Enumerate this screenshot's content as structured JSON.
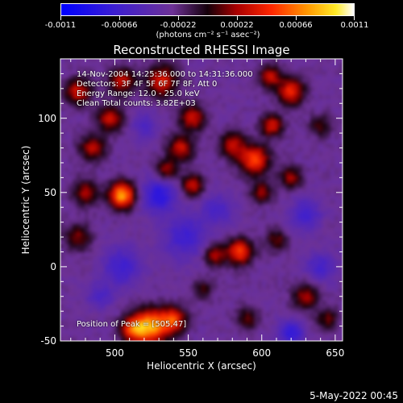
{
  "chart_data": {
    "type": "heatmap",
    "title": "Reconstructed RHESSI Image",
    "xlabel": "Heliocentric X (arcsec)",
    "ylabel": "Heliocentric Y (arcsec)",
    "xlim": [
      463,
      655
    ],
    "ylim": [
      -50,
      140
    ],
    "xticks": [
      500,
      550,
      600,
      650
    ],
    "yticks": [
      -50,
      0,
      50,
      100
    ],
    "colorbar": {
      "ticks": [
        -0.0011,
        -0.00066,
        -0.00022,
        0.00022,
        0.00066,
        0.0011
      ],
      "tick_labels": [
        "-0.0011",
        "-0.00066",
        "-0.00022",
        "0.00022",
        "0.00066",
        "0.0011"
      ],
      "units": "(photons cm⁻² s⁻¹ asec⁻²)",
      "range": [
        -0.0011,
        0.0011
      ]
    },
    "annotations": [
      "14-Nov-2004 14:25:36.000 to 14:31:36.000",
      "Detectors: 3F 4F 5F 6F 7F 8F, Att 0",
      "Energy Range: 12.0 - 25.0 keV",
      "Clean      Total counts: 3.82E+03",
      "Position of Peak = [505,47]"
    ],
    "sources": [
      {
        "x": 505,
        "y": 48,
        "amp": 0.0011,
        "sigma": 6
      },
      {
        "x": 525,
        "y": -40,
        "amp": 0.001,
        "sigma": 8
      },
      {
        "x": 513,
        "y": -42,
        "amp": 0.0008,
        "sigma": 6
      },
      {
        "x": 540,
        "y": -36,
        "amp": 0.00075,
        "sigma": 6
      },
      {
        "x": 585,
        "y": 10,
        "amp": 0.0008,
        "sigma": 6
      },
      {
        "x": 568,
        "y": 8,
        "amp": 0.00055,
        "sigma": 5
      },
      {
        "x": 595,
        "y": 72,
        "amp": 0.0008,
        "sigma": 7
      },
      {
        "x": 580,
        "y": 82,
        "amp": 0.00055,
        "sigma": 6
      },
      {
        "x": 607,
        "y": 95,
        "amp": 0.00065,
        "sigma": 5
      },
      {
        "x": 620,
        "y": 118,
        "amp": 0.00075,
        "sigma": 6
      },
      {
        "x": 606,
        "y": 128,
        "amp": 0.0006,
        "sigma": 5
      },
      {
        "x": 532,
        "y": 125,
        "amp": 0.0007,
        "sigma": 7
      },
      {
        "x": 505,
        "y": 125,
        "amp": 0.0006,
        "sigma": 6
      },
      {
        "x": 475,
        "y": 118,
        "amp": 0.00065,
        "sigma": 6
      },
      {
        "x": 497,
        "y": 100,
        "amp": 0.0006,
        "sigma": 6
      },
      {
        "x": 485,
        "y": 80,
        "amp": 0.00055,
        "sigma": 6
      },
      {
        "x": 480,
        "y": 50,
        "amp": 0.0005,
        "sigma": 6
      },
      {
        "x": 475,
        "y": 20,
        "amp": 0.00045,
        "sigma": 6
      },
      {
        "x": 553,
        "y": 100,
        "amp": 0.0006,
        "sigma": 6
      },
      {
        "x": 545,
        "y": 80,
        "amp": 0.0006,
        "sigma": 6
      },
      {
        "x": 553,
        "y": 55,
        "amp": 0.00065,
        "sigma": 5
      },
      {
        "x": 535,
        "y": 65,
        "amp": 0.0005,
        "sigma": 5
      },
      {
        "x": 600,
        "y": 50,
        "amp": 0.00045,
        "sigma": 5
      },
      {
        "x": 620,
        "y": 60,
        "amp": 0.0005,
        "sigma": 5
      },
      {
        "x": 610,
        "y": 18,
        "amp": 0.0004,
        "sigma": 5
      },
      {
        "x": 630,
        "y": -20,
        "amp": 0.0005,
        "sigma": 6
      },
      {
        "x": 645,
        "y": -35,
        "amp": 0.0004,
        "sigma": 5
      },
      {
        "x": 590,
        "y": -35,
        "amp": 0.0004,
        "sigma": 5
      },
      {
        "x": 560,
        "y": -15,
        "amp": 0.0003,
        "sigma": 5
      },
      {
        "x": 640,
        "y": 95,
        "amp": 0.00035,
        "sigma": 5
      },
      {
        "x": 530,
        "y": 48,
        "amp": -0.00055,
        "sigma": 8
      },
      {
        "x": 548,
        "y": 20,
        "amp": -0.0004,
        "sigma": 10
      },
      {
        "x": 505,
        "y": 0,
        "amp": -0.0004,
        "sigma": 9
      },
      {
        "x": 620,
        "y": -45,
        "amp": -0.0005,
        "sigma": 6
      },
      {
        "x": 630,
        "y": 35,
        "amp": -0.0004,
        "sigma": 7
      },
      {
        "x": 640,
        "y": 0,
        "amp": -0.00035,
        "sigma": 7
      },
      {
        "x": 570,
        "y": 38,
        "amp": -0.0003,
        "sigma": 8
      },
      {
        "x": 520,
        "y": 95,
        "amp": -0.0003,
        "sigma": 6
      },
      {
        "x": 490,
        "y": -20,
        "amp": -0.0003,
        "sigma": 6
      }
    ],
    "background": -0.00028
  },
  "footer": {
    "timestamp": "5-May-2022 00:45"
  }
}
